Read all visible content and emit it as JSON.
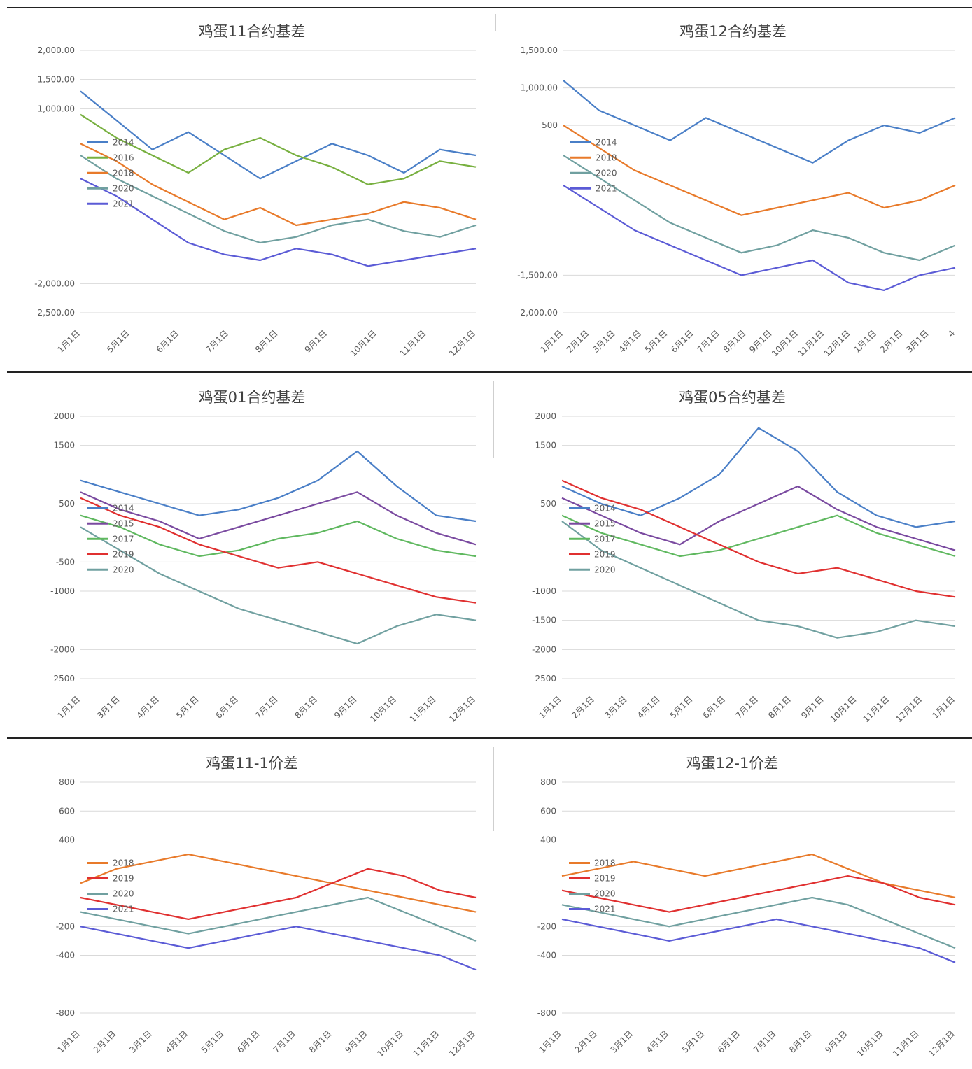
{
  "colors": {
    "2014": "#4a7fc7",
    "2015": "#7a4aa0",
    "2016": "#78b040",
    "2017": "#5fb85f",
    "2018": "#e87a2a",
    "2019": "#e03030",
    "2020": "#70a0a0",
    "2021": "#5b5bd6",
    "grid": "#d9d9d9",
    "axis_text": "#595959",
    "title_text": "#404040"
  },
  "chart_data": [
    {
      "type": "line",
      "title": "鸡蛋11合约基差",
      "y_ticks": [
        "2,000.00",
        "1,500.00",
        "1,000.00",
        "-2,000.00",
        "-2,500.00"
      ],
      "ylim": [
        -2500,
        2000
      ],
      "x_ticks": [
        "1月1日",
        "5月1日",
        "6月1日",
        "7月1日",
        "8月1日",
        "9月1日",
        "10月1日",
        "11月1日",
        "12月1日"
      ],
      "legend": [
        "2014",
        "2016",
        "2018",
        "2020",
        "2021"
      ],
      "series": [
        {
          "name": "2014",
          "values": [
            1300,
            800,
            300,
            600,
            200,
            -200,
            100,
            400,
            200,
            -100,
            300,
            200
          ]
        },
        {
          "name": "2016",
          "values": [
            900,
            500,
            200,
            -100,
            300,
            500,
            200,
            0,
            -300,
            -200,
            100,
            0
          ]
        },
        {
          "name": "2018",
          "values": [
            400,
            100,
            -300,
            -600,
            -900,
            -700,
            -1000,
            -900,
            -800,
            -600,
            -700,
            -900
          ]
        },
        {
          "name": "2020",
          "values": [
            200,
            -200,
            -500,
            -800,
            -1100,
            -1300,
            -1200,
            -1000,
            -900,
            -1100,
            -1200,
            -1000
          ]
        },
        {
          "name": "2021",
          "values": [
            -200,
            -500,
            -900,
            -1300,
            -1500,
            -1600,
            -1400,
            -1500,
            -1700,
            -1600,
            -1500,
            -1400
          ]
        }
      ]
    },
    {
      "type": "line",
      "title": "鸡蛋12合约基差",
      "y_ticks": [
        "1,500.00",
        "1,000.00",
        "500",
        "-1,500.00",
        "-2,000.00"
      ],
      "ylim": [
        -2000,
        1500
      ],
      "x_ticks": [
        "1月1日",
        "2月1日",
        "3月1日",
        "4月1日",
        "5月1日",
        "6月1日",
        "7月1日",
        "8月1日",
        "9月1日",
        "10月1日",
        "11月1日",
        "12月1日",
        "1月1日",
        "2月1日",
        "3月1日",
        "4"
      ],
      "legend": [
        "2014",
        "2018",
        "2020",
        "2021"
      ],
      "series": [
        {
          "name": "2014",
          "values": [
            1100,
            700,
            500,
            300,
            600,
            400,
            200,
            0,
            300,
            500,
            400,
            600
          ]
        },
        {
          "name": "2018",
          "values": [
            500,
            200,
            -100,
            -300,
            -500,
            -700,
            -600,
            -500,
            -400,
            -600,
            -500,
            -300
          ]
        },
        {
          "name": "2020",
          "values": [
            100,
            -200,
            -500,
            -800,
            -1000,
            -1200,
            -1100,
            -900,
            -1000,
            -1200,
            -1300,
            -1100
          ]
        },
        {
          "name": "2021",
          "values": [
            -300,
            -600,
            -900,
            -1100,
            -1300,
            -1500,
            -1400,
            -1300,
            -1600,
            -1700,
            -1500,
            -1400
          ]
        }
      ]
    },
    {
      "type": "line",
      "title": "鸡蛋01合约基差",
      "y_ticks": [
        "2000",
        "1500",
        "500",
        "-500",
        "-1000",
        "-2000",
        "-2500"
      ],
      "ylim": [
        -2500,
        2000
      ],
      "x_ticks": [
        "1月1日",
        "3月1日",
        "4月1日",
        "5月1日",
        "6月1日",
        "7月1日",
        "8月1日",
        "9月1日",
        "10月1日",
        "11月1日",
        "12月1日"
      ],
      "legend": [
        "2014",
        "2015",
        "2017",
        "2019",
        "2020"
      ],
      "series": [
        {
          "name": "2014",
          "values": [
            900,
            700,
            500,
            300,
            400,
            600,
            900,
            1400,
            800,
            300,
            200
          ]
        },
        {
          "name": "2015",
          "values": [
            700,
            400,
            200,
            -100,
            100,
            300,
            500,
            700,
            300,
            0,
            -200
          ]
        },
        {
          "name": "2017",
          "values": [
            300,
            100,
            -200,
            -400,
            -300,
            -100,
            0,
            200,
            -100,
            -300,
            -400
          ]
        },
        {
          "name": "2019",
          "values": [
            600,
            300,
            100,
            -200,
            -400,
            -600,
            -500,
            -700,
            -900,
            -1100,
            -1200
          ]
        },
        {
          "name": "2020",
          "values": [
            100,
            -300,
            -700,
            -1000,
            -1300,
            -1500,
            -1700,
            -1900,
            -1600,
            -1400,
            -1500
          ]
        }
      ]
    },
    {
      "type": "line",
      "title": "鸡蛋05合约基差",
      "y_ticks": [
        "2000",
        "1500",
        "500",
        "-1000",
        "-1500",
        "-2000",
        "-2500"
      ],
      "ylim": [
        -2500,
        2000
      ],
      "x_ticks": [
        "1月1日",
        "2月1日",
        "3月1日",
        "4月1日",
        "5月1日",
        "6月1日",
        "7月1日",
        "8月1日",
        "9月1日",
        "10月1日",
        "11月1日",
        "12月1日",
        "1月1日"
      ],
      "legend": [
        "2014",
        "2015",
        "2017",
        "2019",
        "2020"
      ],
      "series": [
        {
          "name": "2014",
          "values": [
            800,
            500,
            300,
            600,
            1000,
            1800,
            1400,
            700,
            300,
            100,
            200
          ]
        },
        {
          "name": "2015",
          "values": [
            600,
            300,
            0,
            -200,
            200,
            500,
            800,
            400,
            100,
            -100,
            -300
          ]
        },
        {
          "name": "2017",
          "values": [
            300,
            0,
            -200,
            -400,
            -300,
            -100,
            100,
            300,
            0,
            -200,
            -400
          ]
        },
        {
          "name": "2019",
          "values": [
            900,
            600,
            400,
            100,
            -200,
            -500,
            -700,
            -600,
            -800,
            -1000,
            -1100
          ]
        },
        {
          "name": "2020",
          "values": [
            200,
            -300,
            -600,
            -900,
            -1200,
            -1500,
            -1600,
            -1800,
            -1700,
            -1500,
            -1600
          ]
        }
      ]
    },
    {
      "type": "line",
      "title": "鸡蛋11-1价差",
      "y_ticks": [
        "800",
        "600",
        "400",
        "-200",
        "-400",
        "-800"
      ],
      "ylim": [
        -800,
        800
      ],
      "x_ticks": [
        "1月1日",
        "2月1日",
        "3月1日",
        "4月1日",
        "5月1日",
        "6月1日",
        "7月1日",
        "8月1日",
        "9月1日",
        "10月1日",
        "11月1日",
        "12月1日"
      ],
      "legend": [
        "2018",
        "2019",
        "2020",
        "2021"
      ],
      "series": [
        {
          "name": "2018",
          "values": [
            100,
            200,
            250,
            300,
            250,
            200,
            150,
            100,
            50,
            0,
            -50,
            -100
          ]
        },
        {
          "name": "2019",
          "values": [
            0,
            -50,
            -100,
            -150,
            -100,
            -50,
            0,
            100,
            200,
            150,
            50,
            0
          ]
        },
        {
          "name": "2020",
          "values": [
            -100,
            -150,
            -200,
            -250,
            -200,
            -150,
            -100,
            -50,
            0,
            -100,
            -200,
            -300
          ]
        },
        {
          "name": "2021",
          "values": [
            -200,
            -250,
            -300,
            -350,
            -300,
            -250,
            -200,
            -250,
            -300,
            -350,
            -400,
            -500
          ]
        }
      ]
    },
    {
      "type": "line",
      "title": "鸡蛋12-1价差",
      "y_ticks": [
        "800",
        "600",
        "400",
        "-200",
        "-400",
        "-800"
      ],
      "ylim": [
        -800,
        800
      ],
      "x_ticks": [
        "1月1日",
        "2月1日",
        "3月1日",
        "4月1日",
        "5月1日",
        "6月1日",
        "7月1日",
        "8月1日",
        "9月1日",
        "10月1日",
        "11月1日",
        "12月1日"
      ],
      "legend": [
        "2018",
        "2019",
        "2020",
        "2021"
      ],
      "series": [
        {
          "name": "2018",
          "values": [
            150,
            200,
            250,
            200,
            150,
            200,
            250,
            300,
            200,
            100,
            50,
            0
          ]
        },
        {
          "name": "2019",
          "values": [
            50,
            0,
            -50,
            -100,
            -50,
            0,
            50,
            100,
            150,
            100,
            0,
            -50
          ]
        },
        {
          "name": "2020",
          "values": [
            -50,
            -100,
            -150,
            -200,
            -150,
            -100,
            -50,
            0,
            -50,
            -150,
            -250,
            -350
          ]
        },
        {
          "name": "2021",
          "values": [
            -150,
            -200,
            -250,
            -300,
            -250,
            -200,
            -150,
            -200,
            -250,
            -300,
            -350,
            -450
          ]
        }
      ]
    }
  ]
}
